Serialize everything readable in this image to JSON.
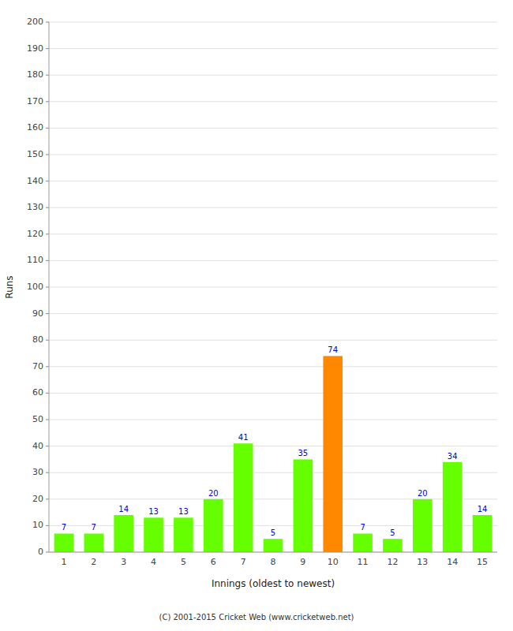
{
  "chart_data": {
    "type": "bar",
    "xlabel": "Innings (oldest to newest)",
    "ylabel": "Runs",
    "categories": [
      "1",
      "2",
      "3",
      "4",
      "5",
      "6",
      "7",
      "8",
      "9",
      "10",
      "11",
      "12",
      "13",
      "14",
      "15"
    ],
    "values": [
      7,
      7,
      14,
      13,
      13,
      20,
      41,
      5,
      35,
      74,
      7,
      5,
      20,
      34,
      14
    ],
    "colors": [
      "#66ff00",
      "#66ff00",
      "#66ff00",
      "#66ff00",
      "#66ff00",
      "#66ff00",
      "#66ff00",
      "#66ff00",
      "#66ff00",
      "#ff8800",
      "#66ff00",
      "#66ff00",
      "#66ff00",
      "#66ff00",
      "#66ff00"
    ],
    "ylim": [
      0,
      200
    ],
    "yticks": [
      0,
      10,
      20,
      30,
      40,
      50,
      60,
      70,
      80,
      90,
      100,
      110,
      120,
      130,
      140,
      150,
      160,
      170,
      180,
      190,
      200
    ],
    "grid": true,
    "data_labels": true,
    "annotations": [
      "(C) 2001-2015 Cricket Web (www.cricketweb.net)"
    ]
  }
}
